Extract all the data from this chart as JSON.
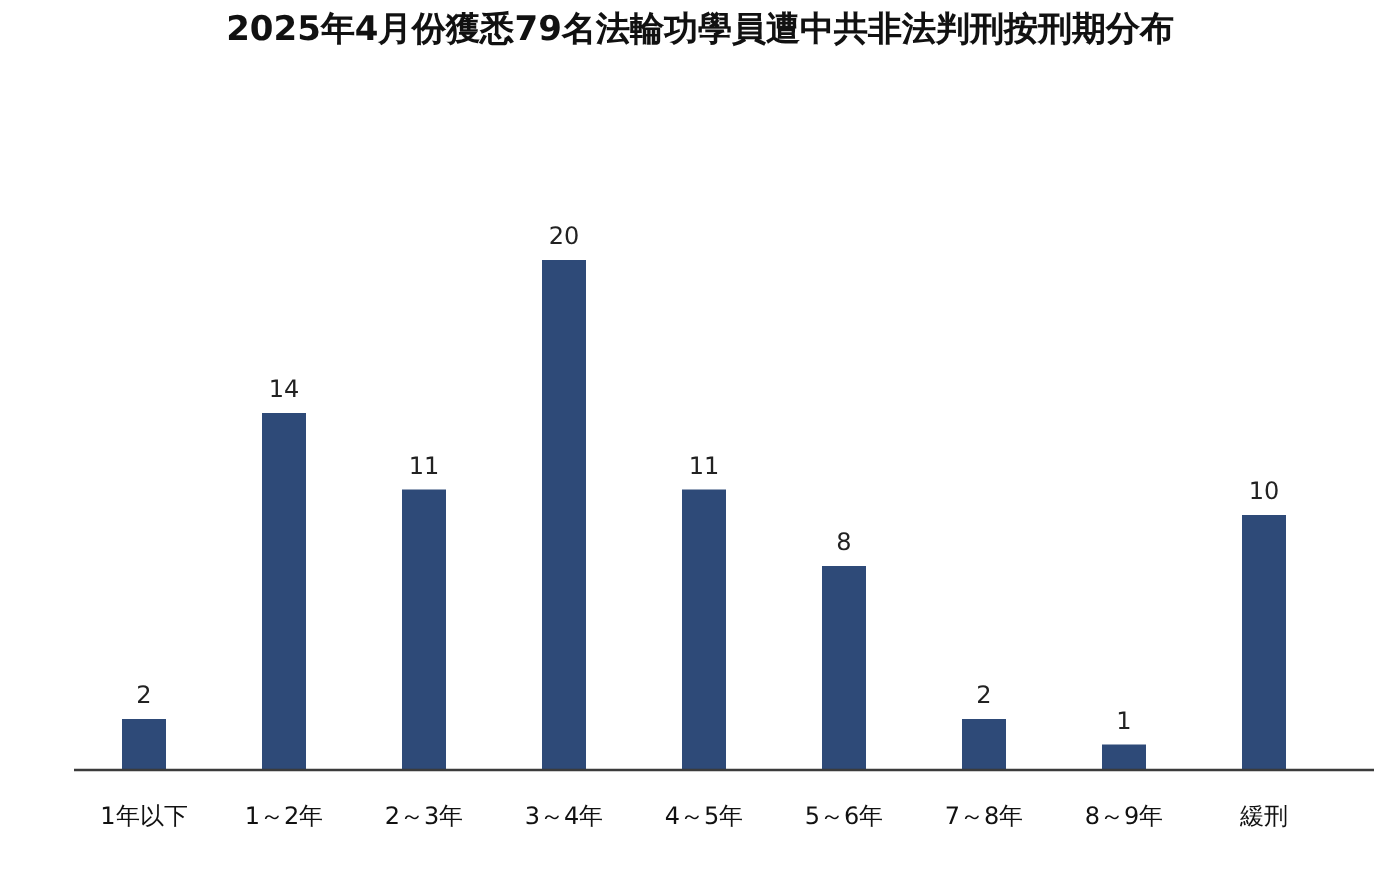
{
  "chart_data": {
    "type": "bar",
    "title": "2025年4月份獲悉79名法輪功學員遭中共非法判刑按刑期分布",
    "categories": [
      "1年以下",
      "1～2年",
      "2～3年",
      "3～4年",
      "4～5年",
      "5～6年",
      "7～8年",
      "8～9年",
      "緩刑"
    ],
    "values": [
      2,
      14,
      11,
      20,
      11,
      8,
      2,
      1,
      10
    ],
    "color": "#2e4a78",
    "data_labels": true
  }
}
